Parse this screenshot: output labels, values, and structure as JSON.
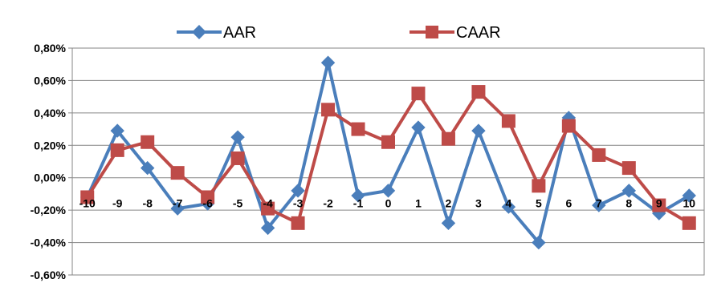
{
  "chart_data": {
    "type": "line",
    "title": "",
    "xlabel": "",
    "ylabel": "",
    "categories": [
      "-10",
      "-9",
      "-8",
      "-7",
      "-6",
      "-5",
      "-4",
      "-3",
      "-2",
      "-1",
      "0",
      "1",
      "2",
      "3",
      "4",
      "5",
      "6",
      "7",
      "8",
      "9",
      "10"
    ],
    "ylim": [
      -0.6,
      0.8
    ],
    "yticks": [
      "0,80%",
      "0,60%",
      "0,40%",
      "0,20%",
      "0,00%",
      "-0,20%",
      "-0,40%",
      "-0,60%"
    ],
    "grid": true,
    "legend_position": "top",
    "series": [
      {
        "name": "AAR",
        "color": "#4a7ebb",
        "marker": "diamond",
        "values": [
          -0.12,
          0.29,
          0.06,
          -0.19,
          -0.16,
          0.25,
          -0.31,
          -0.08,
          0.71,
          -0.11,
          -0.08,
          0.31,
          -0.28,
          0.29,
          -0.18,
          -0.4,
          0.37,
          -0.17,
          -0.08,
          -0.22,
          -0.11
        ]
      },
      {
        "name": "CAAR",
        "color": "#be4b48",
        "marker": "square",
        "values": [
          -0.12,
          0.17,
          0.22,
          0.03,
          -0.12,
          0.12,
          -0.19,
          -0.28,
          0.42,
          0.3,
          0.22,
          0.52,
          0.24,
          0.53,
          0.35,
          -0.05,
          0.32,
          0.14,
          0.06,
          -0.17,
          -0.28
        ]
      }
    ]
  }
}
